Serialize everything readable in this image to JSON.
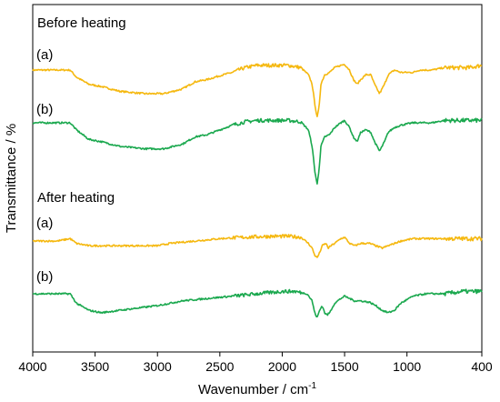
{
  "chart_data": {
    "type": "line",
    "xlabel": "Wavenumber / cm",
    "xlabel_sup": "-1",
    "ylabel": "Transmittance / %",
    "xlim": [
      4000,
      400
    ],
    "x_reversed": true,
    "x_ticks": [
      "4000",
      "3500",
      "3000",
      "2500",
      "2000",
      "1500",
      "1000",
      "400"
    ],
    "x_tick_values": [
      4000,
      3500,
      3000,
      2500,
      2000,
      1500,
      1000,
      400
    ],
    "y_ticks_shown": false,
    "grid": false,
    "groups": [
      {
        "title": "Before heating",
        "series": [
          {
            "name": "(a)",
            "color": "#f5b80f",
            "points": [
              [
                4000,
                0.0
              ],
              [
                3800,
                0.0
              ],
              [
                3700,
                0.0
              ],
              [
                3650,
                -1.5
              ],
              [
                3550,
                -3.0
              ],
              [
                3450,
                -3.5
              ],
              [
                3300,
                -4.5
              ],
              [
                3100,
                -5.0
              ],
              [
                2950,
                -5.0
              ],
              [
                2800,
                -4.0
              ],
              [
                2700,
                -2.5
              ],
              [
                2600,
                -2.0
              ],
              [
                2500,
                -1.2
              ],
              [
                2400,
                -0.5
              ],
              [
                2300,
                0.5
              ],
              [
                2200,
                1.0
              ],
              [
                2100,
                1.0
              ],
              [
                1950,
                1.0
              ],
              [
                1850,
                0.5
              ],
              [
                1790,
                -1.0
              ],
              [
                1760,
                -3.0
              ],
              [
                1740,
                -7.0
              ],
              [
                1720,
                -10.0
              ],
              [
                1705,
                -8.0
              ],
              [
                1690,
                -3.0
              ],
              [
                1660,
                -1.0
              ],
              [
                1620,
                -0.5
              ],
              [
                1580,
                0.5
              ],
              [
                1530,
                1.0
              ],
              [
                1500,
                1.2
              ],
              [
                1460,
                0.0
              ],
              [
                1430,
                -2.0
              ],
              [
                1400,
                -3.0
              ],
              [
                1370,
                -2.0
              ],
              [
                1330,
                -1.0
              ],
              [
                1290,
                -1.0
              ],
              [
                1260,
                -3.0
              ],
              [
                1220,
                -5.0
              ],
              [
                1180,
                -3.0
              ],
              [
                1150,
                -1.0
              ],
              [
                1100,
                0.0
              ],
              [
                1050,
                -0.5
              ],
              [
                950,
                -0.5
              ],
              [
                900,
                0.0
              ],
              [
                800,
                0.0
              ],
              [
                700,
                0.5
              ],
              [
                600,
                0.5
              ],
              [
                500,
                0.5
              ],
              [
                400,
                1.0
              ]
            ]
          },
          {
            "name": "(b)",
            "color": "#1aa84e",
            "points": [
              [
                4000,
                0.0
              ],
              [
                3800,
                0.0
              ],
              [
                3700,
                0.0
              ],
              [
                3650,
                -1.5
              ],
              [
                3550,
                -3.5
              ],
              [
                3450,
                -4.0
              ],
              [
                3300,
                -5.0
              ],
              [
                3100,
                -5.5
              ],
              [
                2950,
                -5.5
              ],
              [
                2800,
                -4.5
              ],
              [
                2700,
                -3.0
              ],
              [
                2600,
                -2.5
              ],
              [
                2500,
                -1.5
              ],
              [
                2400,
                -0.5
              ],
              [
                2300,
                0.2
              ],
              [
                2200,
                0.5
              ],
              [
                2100,
                0.5
              ],
              [
                1950,
                0.5
              ],
              [
                1850,
                0.2
              ],
              [
                1790,
                -1.5
              ],
              [
                1760,
                -5.0
              ],
              [
                1740,
                -10.0
              ],
              [
                1720,
                -13.0
              ],
              [
                1705,
                -10.0
              ],
              [
                1690,
                -5.0
              ],
              [
                1660,
                -3.0
              ],
              [
                1620,
                -2.5
              ],
              [
                1580,
                -1.0
              ],
              [
                1530,
                0.0
              ],
              [
                1500,
                0.5
              ],
              [
                1460,
                -1.0
              ],
              [
                1430,
                -3.0
              ],
              [
                1400,
                -4.0
              ],
              [
                1370,
                -2.0
              ],
              [
                1330,
                -1.5
              ],
              [
                1290,
                -2.0
              ],
              [
                1260,
                -4.0
              ],
              [
                1220,
                -6.0
              ],
              [
                1180,
                -4.0
              ],
              [
                1150,
                -2.0
              ],
              [
                1100,
                -1.0
              ],
              [
                1050,
                -0.5
              ],
              [
                950,
                0.0
              ],
              [
                900,
                0.0
              ],
              [
                800,
                0.0
              ],
              [
                700,
                0.5
              ],
              [
                600,
                0.5
              ],
              [
                500,
                0.5
              ],
              [
                400,
                0.5
              ]
            ]
          }
        ]
      },
      {
        "title": "After heating",
        "series": [
          {
            "name": "(a)",
            "color": "#f5b80f",
            "points": [
              [
                4000,
                0.0
              ],
              [
                3800,
                0.0
              ],
              [
                3700,
                0.5
              ],
              [
                3650,
                -0.5
              ],
              [
                3550,
                -1.0
              ],
              [
                3400,
                -1.0
              ],
              [
                3200,
                -1.0
              ],
              [
                3000,
                -1.0
              ],
              [
                2900,
                -0.5
              ],
              [
                2700,
                0.0
              ],
              [
                2500,
                0.5
              ],
              [
                2300,
                0.8
              ],
              [
                2100,
                1.0
              ],
              [
                1950,
                1.0
              ],
              [
                1850,
                0.8
              ],
              [
                1790,
                -0.5
              ],
              [
                1760,
                -1.5
              ],
              [
                1740,
                -3.0
              ],
              [
                1720,
                -3.5
              ],
              [
                1700,
                -2.5
              ],
              [
                1680,
                -1.0
              ],
              [
                1650,
                -0.5
              ],
              [
                1630,
                -1.5
              ],
              [
                1610,
                -1.0
              ],
              [
                1580,
                -0.5
              ],
              [
                1530,
                0.5
              ],
              [
                1500,
                0.8
              ],
              [
                1460,
                -0.5
              ],
              [
                1420,
                -1.0
              ],
              [
                1370,
                -0.5
              ],
              [
                1300,
                -0.5
              ],
              [
                1250,
                -1.0
              ],
              [
                1200,
                -1.5
              ],
              [
                1150,
                -1.0
              ],
              [
                1100,
                -0.5
              ],
              [
                1050,
                0.0
              ],
              [
                950,
                0.5
              ],
              [
                850,
                0.5
              ],
              [
                700,
                0.5
              ],
              [
                550,
                0.5
              ],
              [
                400,
                0.5
              ]
            ]
          },
          {
            "name": "(b)",
            "color": "#1aa84e",
            "points": [
              [
                4000,
                0.0
              ],
              [
                3800,
                0.0
              ],
              [
                3700,
                0.0
              ],
              [
                3650,
                -2.0
              ],
              [
                3550,
                -3.5
              ],
              [
                3450,
                -4.0
              ],
              [
                3300,
                -3.5
              ],
              [
                3150,
                -3.0
              ],
              [
                3000,
                -2.5
              ],
              [
                2800,
                -1.5
              ],
              [
                2600,
                -1.0
              ],
              [
                2400,
                -0.5
              ],
              [
                2200,
                0.0
              ],
              [
                2000,
                0.5
              ],
              [
                1900,
                0.5
              ],
              [
                1800,
                0.0
              ],
              [
                1760,
                -1.5
              ],
              [
                1740,
                -4.0
              ],
              [
                1720,
                -5.0
              ],
              [
                1700,
                -3.5
              ],
              [
                1680,
                -2.5
              ],
              [
                1660,
                -4.0
              ],
              [
                1640,
                -4.5
              ],
              [
                1620,
                -4.0
              ],
              [
                1580,
                -2.0
              ],
              [
                1530,
                -1.0
              ],
              [
                1500,
                -0.5
              ],
              [
                1460,
                -1.0
              ],
              [
                1420,
                -1.5
              ],
              [
                1370,
                -1.5
              ],
              [
                1300,
                -1.8
              ],
              [
                1250,
                -2.5
              ],
              [
                1200,
                -3.5
              ],
              [
                1150,
                -4.0
              ],
              [
                1100,
                -3.5
              ],
              [
                1050,
                -2.0
              ],
              [
                950,
                -0.5
              ],
              [
                850,
                0.0
              ],
              [
                700,
                0.0
              ],
              [
                550,
                0.5
              ],
              [
                400,
                0.5
              ]
            ]
          }
        ]
      }
    ]
  }
}
